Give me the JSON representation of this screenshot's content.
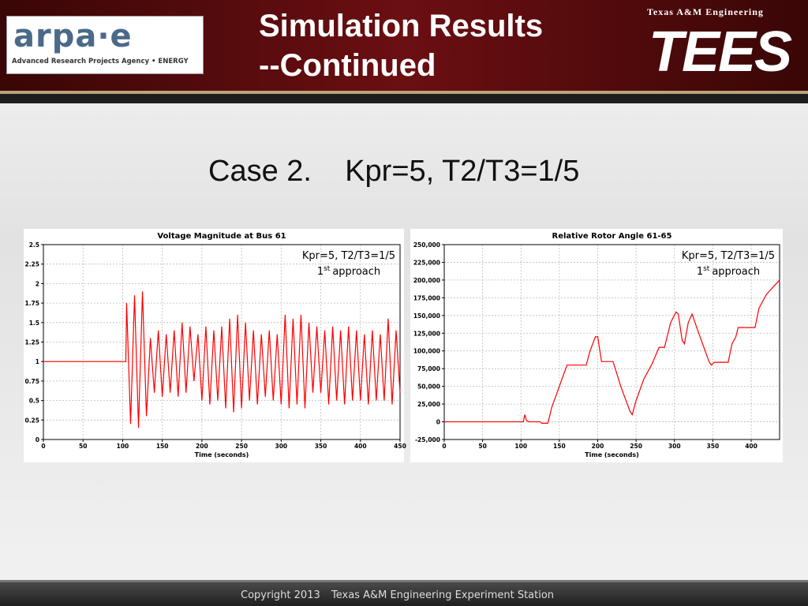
{
  "header": {
    "title_line1": "Simulation Results",
    "title_line2": "--Continued",
    "left_logo": "arpa·e",
    "left_logo_caption": "Advanced Research Projects Agency • ENERGY",
    "right_logo_caption": "Texas A&M Engineering",
    "right_logo": "TEES"
  },
  "slide_subtitle": {
    "case": "Case 2.",
    "params": "Kpr=5, T2/T3=1/5"
  },
  "footer": {
    "copyright": "Copyright 2013",
    "org": "Texas A&M Engineering Experiment Station"
  },
  "chart_data": [
    {
      "type": "line",
      "title": "Voltage Magnitude at Bus 61",
      "x_label": "Time (seconds)",
      "annotation": {
        "line1": "Kpr=5, T2/T3=1/5",
        "ordinal": "1",
        "ordinal_suffix": "st",
        "line2": "approach"
      },
      "xlim": [
        0,
        450
      ],
      "xticks": [
        0,
        50,
        100,
        150,
        200,
        250,
        300,
        350,
        400,
        450
      ],
      "ylim": [
        0,
        2.5
      ],
      "yticks": [
        0,
        0.25,
        0.5,
        0.75,
        1,
        1.25,
        1.5,
        1.75,
        2,
        2.25,
        2.5
      ],
      "grid": true,
      "x": [
        0,
        104,
        105,
        110,
        115,
        120,
        125,
        130,
        135,
        140,
        145,
        150,
        155,
        160,
        165,
        170,
        175,
        180,
        185,
        190,
        195,
        200,
        205,
        210,
        215,
        220,
        225,
        230,
        235,
        240,
        245,
        250,
        255,
        260,
        265,
        270,
        275,
        280,
        285,
        290,
        295,
        300,
        305,
        310,
        315,
        320,
        325,
        330,
        335,
        340,
        345,
        350,
        355,
        360,
        365,
        370,
        375,
        380,
        385,
        390,
        395,
        400,
        405,
        410,
        415,
        420,
        425,
        430,
        435,
        440,
        445,
        450
      ],
      "series": [
        {
          "color": "#ff0000",
          "values": [
            1,
            1,
            1.75,
            0.2,
            1.85,
            0.15,
            1.9,
            0.3,
            1.3,
            0.6,
            1.4,
            0.55,
            1.35,
            0.6,
            1.4,
            0.55,
            1.5,
            0.6,
            1.45,
            0.75,
            1.35,
            0.5,
            1.45,
            0.45,
            1.4,
            0.5,
            1.45,
            0.4,
            1.55,
            0.35,
            1.6,
            0.4,
            1.5,
            0.5,
            1.4,
            0.45,
            1.35,
            0.55,
            1.4,
            0.5,
            1.35,
            0.45,
            1.6,
            0.4,
            1.55,
            0.45,
            1.6,
            0.4,
            1.5,
            0.6,
            1.45,
            0.6,
            1.4,
            0.45,
            1.45,
            0.5,
            1.4,
            0.45,
            1.45,
            0.5,
            1.4,
            0.5,
            1.35,
            0.45,
            1.4,
            0.5,
            1.35,
            0.5,
            1.55,
            0.45,
            1.4,
            0.6
          ]
        }
      ]
    },
    {
      "type": "line",
      "title": "Relative Rotor Angle 61-65",
      "x_label": "Time (seconds)",
      "annotation": {
        "line1": "Kpr=5, T2/T3=1/5",
        "ordinal": "1",
        "ordinal_suffix": "st",
        "line2": "approach"
      },
      "xlim": [
        0,
        437
      ],
      "xticks": [
        0,
        50,
        100,
        150,
        200,
        250,
        300,
        350,
        400
      ],
      "ylim": [
        -25000,
        250000
      ],
      "yticks": [
        {
          "value": -25000,
          "label": "-25,000"
        },
        0,
        {
          "value": 25000,
          "label": "25,000"
        },
        {
          "value": 50000,
          "label": "50,000"
        },
        {
          "value": 75000,
          "label": "75,000"
        },
        {
          "value": 100000,
          "label": "100,000"
        },
        {
          "value": 125000,
          "label": "125,000"
        },
        {
          "value": 150000,
          "label": "150,000"
        },
        {
          "value": 175000,
          "label": "175,000"
        },
        {
          "value": 200000,
          "label": "200,000"
        },
        {
          "value": 225000,
          "label": "225,000"
        },
        {
          "value": 250000,
          "label": "250,000"
        }
      ],
      "grid": true,
      "x": [
        0,
        100,
        103,
        105,
        107,
        110,
        125,
        127,
        135,
        140,
        150,
        160,
        180,
        185,
        190,
        197,
        200,
        205,
        220,
        230,
        242,
        245,
        250,
        260,
        270,
        280,
        287,
        295,
        302,
        305,
        310,
        313,
        318,
        323,
        330,
        340,
        345,
        348,
        352,
        370,
        375,
        380,
        383,
        400,
        405,
        410,
        420,
        437
      ],
      "series": [
        {
          "color": "#ff0000",
          "values": [
            0,
            0,
            0,
            10000,
            2000,
            0,
            0,
            -2000,
            -2000,
            20000,
            50000,
            80000,
            80000,
            80000,
            100000,
            120000,
            120000,
            85000,
            85000,
            50000,
            15000,
            10000,
            30000,
            60000,
            80000,
            105000,
            105000,
            140000,
            155000,
            152000,
            115000,
            110000,
            140000,
            152000,
            130000,
            100000,
            85000,
            80000,
            84000,
            84000,
            110000,
            120000,
            133000,
            133000,
            133000,
            160000,
            180000,
            200000
          ]
        }
      ]
    }
  ]
}
